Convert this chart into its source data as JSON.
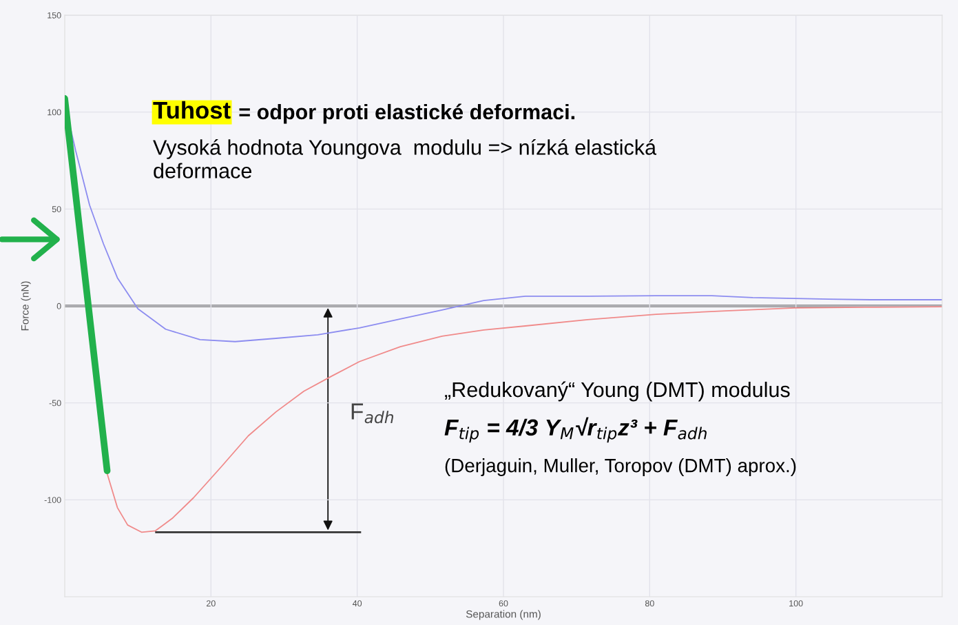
{
  "chart_data": {
    "type": "line",
    "xlabel": "Separation (nm)",
    "ylabel": "Force (nN)",
    "xlim": [
      0,
      120
    ],
    "ylim": [
      -150,
      150
    ],
    "xticks": [
      20,
      40,
      60,
      80,
      100
    ],
    "yticks": [
      -100,
      -50,
      0,
      50,
      100,
      150
    ],
    "grid": true,
    "series": [
      {
        "color": "#8c8cf0",
        "x": [
          0.3,
          1.5,
          3.4,
          5.3,
          7.2,
          10,
          13.8,
          18.5,
          23.3,
          28.9,
          34.6,
          40.3,
          45.9,
          51.6,
          57.3,
          63,
          71.5,
          80.9,
          88.5,
          94.1,
          104.5,
          110.2,
          120
        ],
        "values": [
          99.6,
          80,
          52,
          32,
          14.5,
          -1.4,
          -12,
          -17.4,
          -18.4,
          -16.7,
          -14.9,
          -11.3,
          -6.7,
          -2.1,
          2.8,
          5,
          5,
          5.3,
          5.3,
          4.3,
          3.5,
          3.2,
          3.2
        ]
      },
      {
        "color": "#22b14c",
        "x": [
          0,
          5.8
        ],
        "values": [
          107,
          -85
        ]
      },
      {
        "color": "#f08a8a",
        "x": [
          5.8,
          7.2,
          8.6,
          10.5,
          12.4,
          14.7,
          17.6,
          21.4,
          25.1,
          28.9,
          32.7,
          36.5,
          40.3,
          45.9,
          51.6,
          57.3,
          63,
          71.5,
          80.9,
          90.4,
          99.8,
          109.3,
          120
        ],
        "values": [
          -86.5,
          -104,
          -113,
          -116.7,
          -116,
          -109.6,
          -99,
          -83,
          -67,
          -54.6,
          -44,
          -36.2,
          -28.7,
          -21,
          -15.6,
          -12.4,
          -10.3,
          -7.1,
          -4.3,
          -2.5,
          -1,
          -0.7,
          -0.4
        ]
      }
    ],
    "ref_lines": [
      {
        "axis": "y",
        "value": 0,
        "color": "#333333"
      }
    ],
    "annotations": [
      "Tuhost",
      " = odpor proti elastické deformaci.",
      "Vysoká hodnota Youngova  modulu => nízká elastická\ndeformace",
      "F$_{adh}$",
      "„Redukovaný“ Young (DMT) modulus",
      "F$_{tip}$ = 4/3 Y$_{M}$√r$_{tip}$z³ + F$_{adh}$",
      "(Derjaguin, Muller, Toropov (DMT) aprox.)"
    ]
  }
}
